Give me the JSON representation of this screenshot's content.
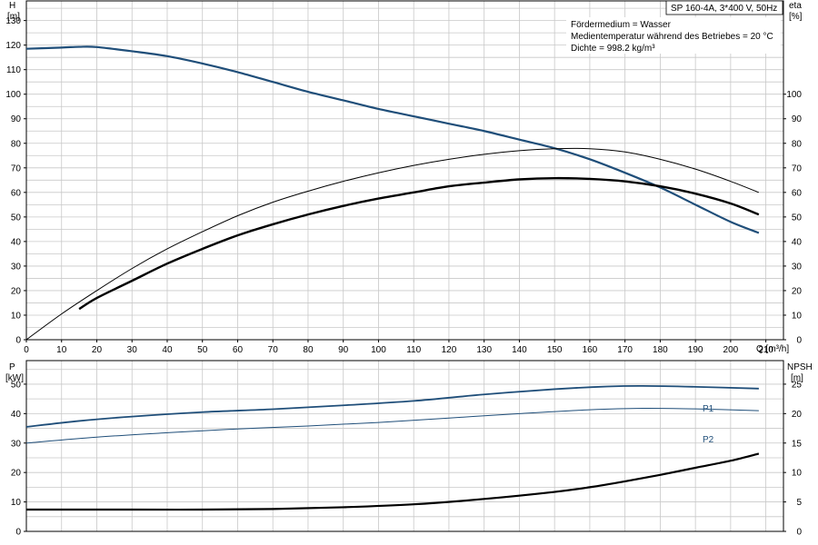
{
  "chart_data": [
    {
      "type": "line",
      "panel": "top",
      "title": "SP 160-4A, 3*400 V, 50Hz",
      "annotations": [
        "Fördermedium = Wasser",
        "Medientemperatur während des Betriebes = 20 °C",
        "Dichte = 998.2 kg/m³"
      ],
      "xlabel": "Q [m³/h]",
      "ylabel_left": [
        "H",
        "[m]"
      ],
      "ylabel_right": [
        "eta",
        "[%]"
      ],
      "xlim": [
        0,
        215
      ],
      "ylim": [
        0,
        138
      ],
      "x_ticks": [
        "0",
        "10",
        "20",
        "30",
        "40",
        "50",
        "60",
        "70",
        "80",
        "90",
        "100",
        "110",
        "120",
        "130",
        "140",
        "150",
        "160",
        "170",
        "180",
        "190",
        "200",
        "210"
      ],
      "left_ticks": [
        "0",
        "10",
        "20",
        "30",
        "40",
        "50",
        "60",
        "70",
        "80",
        "90",
        "100",
        "110",
        "120",
        "130"
      ],
      "right_ticks": [
        "0",
        "10",
        "20",
        "30",
        "40",
        "50",
        "60",
        "70",
        "80",
        "90",
        "100"
      ],
      "grid": true,
      "colors": {
        "head": "#1f4e79",
        "efficiency": "#000000"
      },
      "series": [
        {
          "key": "head",
          "axis": "left",
          "points": [
            [
              0,
              118.5
            ],
            [
              10,
              119
            ],
            [
              15,
              119.3
            ],
            [
              20,
              119.2
            ],
            [
              30,
              117.5
            ],
            [
              40,
              115.5
            ],
            [
              50,
              112.5
            ],
            [
              60,
              109
            ],
            [
              70,
              105
            ],
            [
              80,
              101
            ],
            [
              90,
              97.5
            ],
            [
              100,
              94
            ],
            [
              110,
              91
            ],
            [
              120,
              88
            ],
            [
              130,
              85
            ],
            [
              140,
              81.5
            ],
            [
              150,
              78
            ],
            [
              160,
              73.5
            ],
            [
              170,
              68
            ],
            [
              180,
              62
            ],
            [
              190,
              55
            ],
            [
              200,
              48
            ],
            [
              208,
              43.5
            ]
          ]
        },
        {
          "key": "eta_thin",
          "axis": "right",
          "points": [
            [
              0,
              0
            ],
            [
              10,
              10.5
            ],
            [
              20,
              20
            ],
            [
              30,
              29
            ],
            [
              40,
              37
            ],
            [
              50,
              44
            ],
            [
              60,
              50.5
            ],
            [
              70,
              56
            ],
            [
              80,
              60.5
            ],
            [
              90,
              64.5
            ],
            [
              100,
              68
            ],
            [
              110,
              71
            ],
            [
              120,
              73.5
            ],
            [
              130,
              75.5
            ],
            [
              140,
              77
            ],
            [
              150,
              77.8
            ],
            [
              160,
              77.8
            ],
            [
              170,
              76.5
            ],
            [
              180,
              73.5
            ],
            [
              190,
              69.5
            ],
            [
              200,
              64.5
            ],
            [
              208,
              60
            ]
          ]
        },
        {
          "key": "eta_thick",
          "axis": "right",
          "points": [
            [
              15,
              12.5
            ],
            [
              20,
              17
            ],
            [
              30,
              24
            ],
            [
              40,
              31
            ],
            [
              50,
              37
            ],
            [
              60,
              42.5
            ],
            [
              70,
              47
            ],
            [
              80,
              51
            ],
            [
              90,
              54.5
            ],
            [
              100,
              57.5
            ],
            [
              110,
              60
            ],
            [
              120,
              62.5
            ],
            [
              130,
              64
            ],
            [
              140,
              65.3
            ],
            [
              150,
              65.8
            ],
            [
              160,
              65.5
            ],
            [
              170,
              64.5
            ],
            [
              180,
              62.5
            ],
            [
              190,
              59.5
            ],
            [
              200,
              55.5
            ],
            [
              208,
              51
            ]
          ]
        }
      ]
    },
    {
      "type": "line",
      "panel": "bottom",
      "ylabel_left": [
        "P",
        "[kW]"
      ],
      "ylabel_right": [
        "NPSH",
        "[m]"
      ],
      "xlim": [
        0,
        215
      ],
      "ylim_left": [
        0,
        58
      ],
      "ylim_right": [
        0,
        29
      ],
      "left_ticks": [
        "0",
        "10",
        "20",
        "30",
        "40",
        "50"
      ],
      "right_ticks": [
        "0",
        "5",
        "10",
        "15",
        "20",
        "25"
      ],
      "grid": true,
      "series": [
        {
          "name": "P1",
          "axis": "left",
          "points": [
            [
              0,
              35.5
            ],
            [
              15,
              37.5
            ],
            [
              30,
              39
            ],
            [
              50,
              40.5
            ],
            [
              70,
              41.5
            ],
            [
              90,
              42.8
            ],
            [
              110,
              44.3
            ],
            [
              130,
              46.5
            ],
            [
              150,
              48.3
            ],
            [
              165,
              49.2
            ],
            [
              175,
              49.4
            ],
            [
              190,
              49.1
            ],
            [
              208,
              48.5
            ]
          ]
        },
        {
          "name": "P2",
          "axis": "left",
          "points": [
            [
              0,
              30
            ],
            [
              20,
              32
            ],
            [
              40,
              33.5
            ],
            [
              60,
              34.8
            ],
            [
              80,
              35.8
            ],
            [
              100,
              37
            ],
            [
              120,
              38.5
            ],
            [
              140,
              40
            ],
            [
              160,
              41.3
            ],
            [
              175,
              41.8
            ],
            [
              190,
              41.6
            ],
            [
              208,
              41
            ]
          ]
        },
        {
          "key": "npsh",
          "axis": "right",
          "points": [
            [
              0,
              3.7
            ],
            [
              15,
              3.7
            ],
            [
              30,
              3.7
            ],
            [
              50,
              3.7
            ],
            [
              70,
              3.8
            ],
            [
              90,
              4.1
            ],
            [
              110,
              4.6
            ],
            [
              130,
              5.5
            ],
            [
              150,
              6.7
            ],
            [
              160,
              7.5
            ],
            [
              170,
              8.5
            ],
            [
              180,
              9.6
            ],
            [
              190,
              10.8
            ],
            [
              200,
              12
            ],
            [
              208,
              13.2
            ]
          ]
        }
      ]
    }
  ]
}
